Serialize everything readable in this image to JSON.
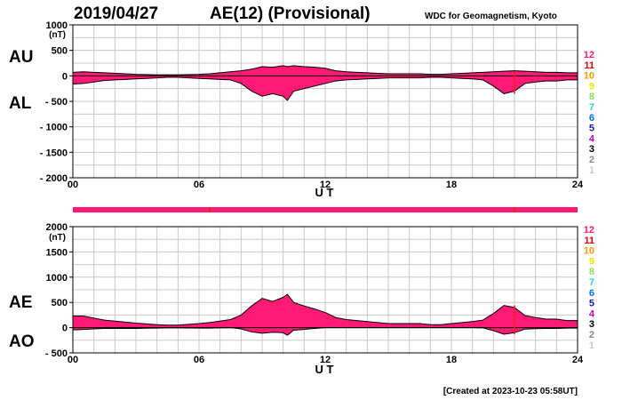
{
  "header": {
    "date": "2019/04/27",
    "title": "AE(12) (Provisional)",
    "organization": "WDC for Geomagnetism, Kyoto"
  },
  "footer": {
    "created": "[Created at 2023-10-23 05:58UT]"
  },
  "colors": {
    "fill": "#ff1a75",
    "marker": "#ff1a1a",
    "grid": "#c8c8c8",
    "envelope": "#000000"
  },
  "legend": {
    "labels": [
      "12",
      "11",
      "10",
      "9",
      "8",
      "7",
      "6",
      "5",
      "4",
      "3",
      "2",
      "1"
    ],
    "colors": [
      "#ff1a75",
      "#e00000",
      "#ff9900",
      "#e8e800",
      "#88e060",
      "#30d0d0",
      "#0070ff",
      "#1a1aa0",
      "#c000c0",
      "#000000",
      "#888888",
      "#cccccc"
    ]
  },
  "chart_data": [
    {
      "type": "area",
      "panel": "AU/AL",
      "side_labels": [
        "AU",
        "AL"
      ],
      "unit": "(nT)",
      "xlabel": "U T",
      "xticks": [
        "00",
        "06",
        "12",
        "18",
        "24"
      ],
      "xlim": [
        0,
        24
      ],
      "ylim": [
        -2000,
        1000
      ],
      "yticks": [
        "1000",
        "500",
        "0",
        "- 500",
        "- 1000",
        "- 1500",
        "- 2000"
      ],
      "grid": true,
      "x": [
        0,
        0.5,
        1,
        1.5,
        2,
        2.5,
        3,
        3.5,
        4,
        4.5,
        5,
        5.5,
        6,
        6.5,
        7,
        7.5,
        8,
        8.5,
        9,
        9.5,
        10,
        10.2,
        10.5,
        11,
        11.5,
        12,
        12.5,
        13,
        13.5,
        14,
        14.5,
        15,
        15.5,
        16,
        16.5,
        17,
        17.5,
        18,
        18.5,
        19,
        19.5,
        20,
        20.5,
        21,
        21.5,
        22,
        22.5,
        23,
        23.5,
        24
      ],
      "series": [
        {
          "name": "AU",
          "values": [
            70,
            80,
            70,
            60,
            50,
            40,
            30,
            25,
            20,
            20,
            20,
            25,
            30,
            40,
            60,
            80,
            100,
            130,
            180,
            170,
            200,
            180,
            200,
            180,
            170,
            150,
            100,
            80,
            70,
            60,
            50,
            40,
            40,
            40,
            40,
            30,
            30,
            40,
            50,
            60,
            70,
            80,
            90,
            100,
            90,
            80,
            70,
            70,
            60,
            60
          ]
        },
        {
          "name": "AL",
          "values": [
            -160,
            -150,
            -120,
            -90,
            -80,
            -70,
            -60,
            -50,
            -40,
            -30,
            -30,
            -40,
            -50,
            -60,
            -70,
            -80,
            -150,
            -300,
            -400,
            -350,
            -400,
            -480,
            -300,
            -250,
            -200,
            -150,
            -100,
            -80,
            -70,
            -60,
            -50,
            -40,
            -40,
            -40,
            -40,
            -30,
            -30,
            -40,
            -50,
            -60,
            -80,
            -200,
            -350,
            -300,
            -150,
            -120,
            -100,
            -100,
            -80,
            -80
          ]
        }
      ]
    },
    {
      "type": "area",
      "panel": "AE/AO",
      "side_labels": [
        "AE",
        "AO"
      ],
      "unit": "(nT)",
      "xlabel": "U T",
      "xticks": [
        "00",
        "06",
        "12",
        "18",
        "24"
      ],
      "xlim": [
        0,
        24
      ],
      "ylim": [
        -500,
        2000
      ],
      "yticks": [
        "2000",
        "1500",
        "1000",
        "500",
        "0",
        "- 500"
      ],
      "grid": true,
      "x": [
        0,
        0.5,
        1,
        1.5,
        2,
        2.5,
        3,
        3.5,
        4,
        4.5,
        5,
        5.5,
        6,
        6.5,
        7,
        7.5,
        8,
        8.5,
        9,
        9.5,
        10,
        10.2,
        10.5,
        11,
        11.5,
        12,
        12.5,
        13,
        13.5,
        14,
        14.5,
        15,
        15.5,
        16,
        16.5,
        17,
        17.5,
        18,
        18.5,
        19,
        19.5,
        20,
        20.5,
        21,
        21.5,
        22,
        22.5,
        23,
        23.5,
        24
      ],
      "series": [
        {
          "name": "AE",
          "values": [
            230,
            230,
            190,
            150,
            130,
            110,
            90,
            75,
            60,
            50,
            50,
            65,
            80,
            100,
            130,
            160,
            250,
            430,
            580,
            520,
            600,
            660,
            500,
            430,
            370,
            300,
            200,
            160,
            140,
            120,
            100,
            80,
            80,
            80,
            80,
            60,
            60,
            80,
            100,
            120,
            150,
            280,
            440,
            400,
            240,
            200,
            170,
            170,
            140,
            140
          ]
        },
        {
          "name": "AO",
          "values": [
            -45,
            -35,
            -25,
            -15,
            -15,
            -15,
            -15,
            -12,
            -10,
            -5,
            -5,
            -8,
            -10,
            -10,
            -5,
            0,
            -25,
            -85,
            -110,
            -90,
            -100,
            -150,
            -50,
            -35,
            -15,
            0,
            0,
            0,
            0,
            0,
            0,
            0,
            0,
            0,
            0,
            0,
            0,
            0,
            0,
            0,
            -5,
            -60,
            -130,
            -100,
            -30,
            -20,
            -15,
            -15,
            -10,
            -10
          ]
        }
      ]
    }
  ]
}
